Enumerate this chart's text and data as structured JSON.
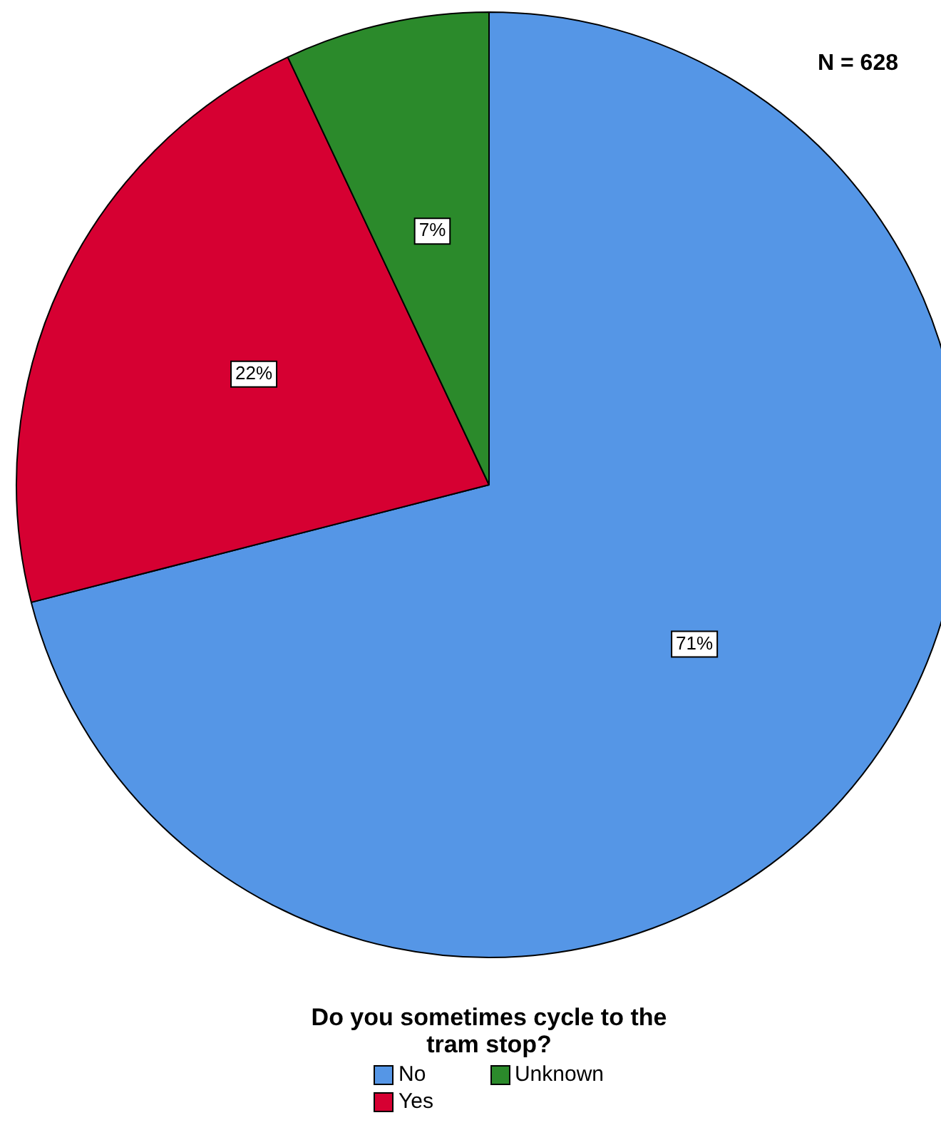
{
  "chart_data": {
    "type": "pie",
    "categories": [
      "No",
      "Yes",
      "Unknown"
    ],
    "values": [
      71,
      22,
      7
    ],
    "colors": [
      "#5596e6",
      "#d60032",
      "#2b8a2b"
    ],
    "value_labels": [
      "71%",
      "22%",
      "7%"
    ],
    "legend": "bottom",
    "legend_title": "Do you sometimes cycle to the tram stop?",
    "annotations": [
      "N = 628"
    ]
  }
}
